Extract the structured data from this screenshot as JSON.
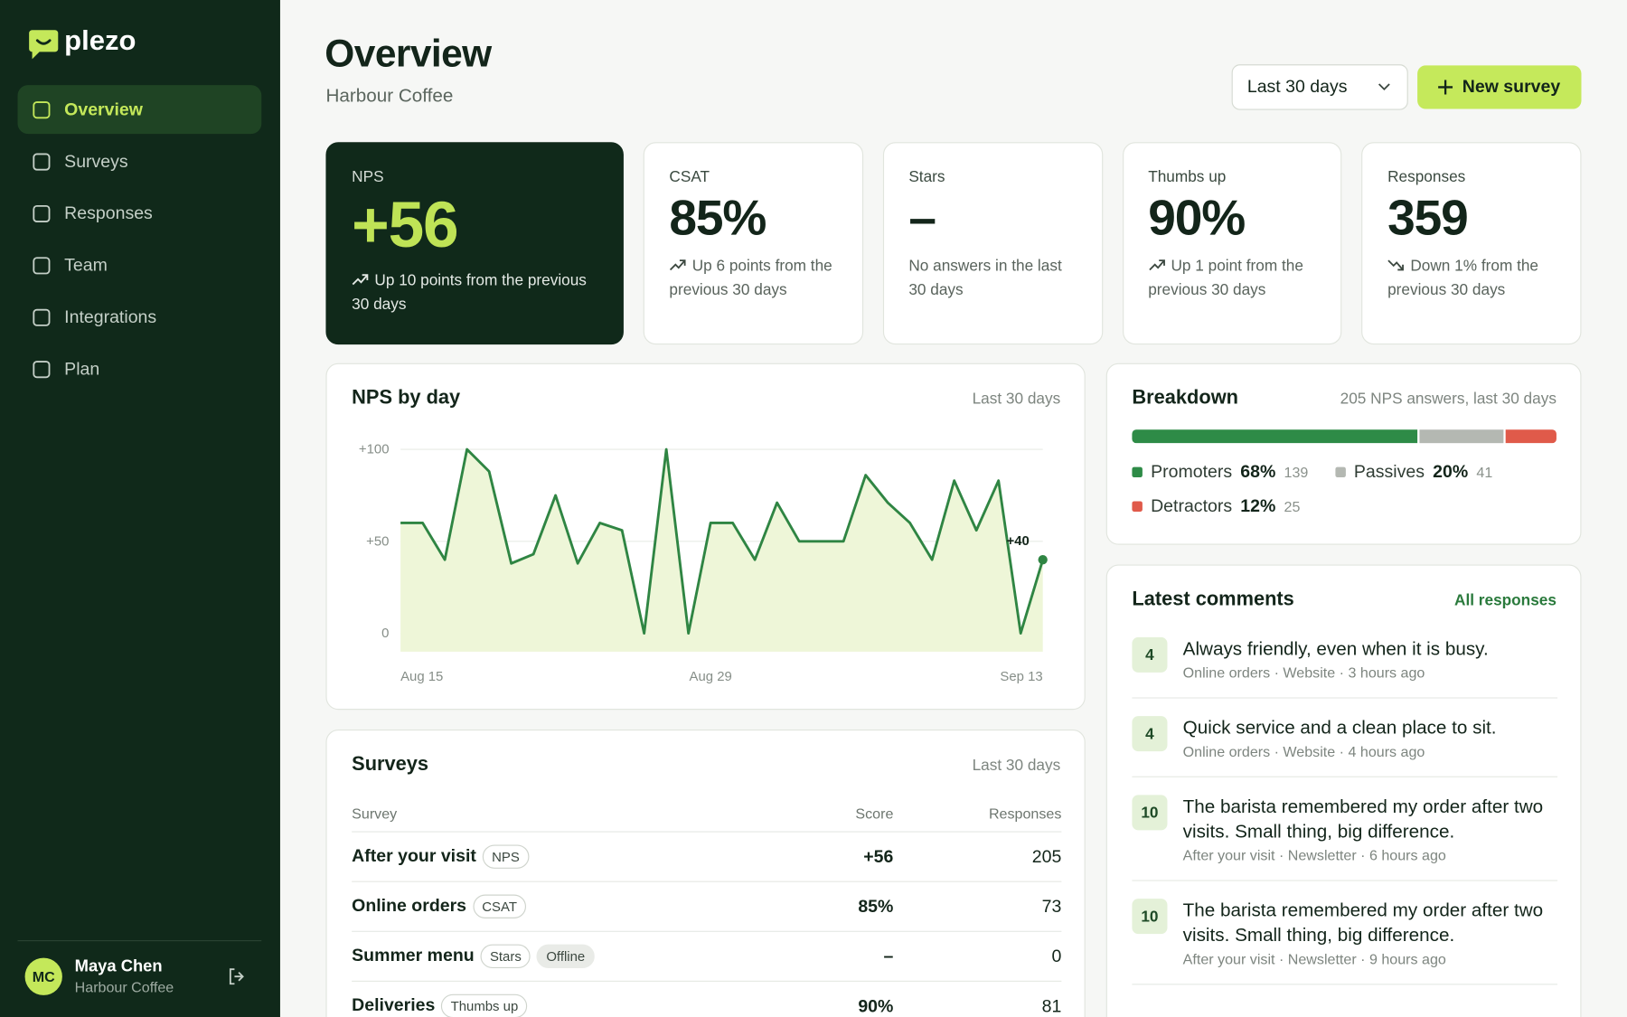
{
  "sidebar": {
    "brand": "plezo",
    "nav": [
      {
        "label": "Overview",
        "active": true
      },
      {
        "label": "Surveys"
      },
      {
        "label": "Responses"
      },
      {
        "label": "Team"
      },
      {
        "label": "Integrations"
      },
      {
        "label": "Plan"
      }
    ],
    "user": {
      "initials": "MC",
      "name": "Maya Chen",
      "org": "Harbour Coffee"
    }
  },
  "header": {
    "title": "Overview",
    "subtitle": "Harbour Coffee",
    "range": "Last 30 days",
    "action": "New survey"
  },
  "kpis": [
    {
      "label": "NPS",
      "value": "+56",
      "delta": "Up 10 points from the previous 30 days",
      "trend": "up",
      "highlight": true
    },
    {
      "label": "CSAT",
      "value": "85%",
      "delta": "Up 6 points from the previous 30 days",
      "trend": "up"
    },
    {
      "label": "Stars",
      "value": "–",
      "delta": "No answers in the last 30 days"
    },
    {
      "label": "Thumbs up",
      "value": "90%",
      "delta": "Up 1 point from the previous 30 days",
      "trend": "up"
    },
    {
      "label": "Responses",
      "value": "359",
      "delta": "Down 1% from the previous 30 days",
      "trend": "down"
    }
  ],
  "chart_data": {
    "type": "line",
    "title": "NPS by day",
    "subtitle": "Last 30 days",
    "categories": [
      "Aug 15",
      null,
      null,
      null,
      null,
      null,
      null,
      null,
      null,
      null,
      null,
      null,
      null,
      null,
      "Aug 29",
      null,
      null,
      null,
      null,
      null,
      null,
      null,
      null,
      null,
      null,
      null,
      null,
      null,
      null,
      "Sep 13"
    ],
    "values": [
      60,
      60,
      40,
      100,
      88,
      38,
      43,
      75,
      38,
      60,
      56,
      0,
      100,
      0,
      60,
      60,
      40,
      71,
      50,
      50,
      50,
      86,
      71,
      60,
      40,
      83,
      56,
      83,
      0,
      40
    ],
    "value_labels": [
      null,
      null,
      null,
      null,
      null,
      null,
      null,
      null,
      null,
      null,
      null,
      null,
      null,
      null,
      null,
      null,
      null,
      null,
      null,
      null,
      null,
      null,
      null,
      null,
      null,
      null,
      null,
      null,
      null,
      "+40"
    ],
    "color": "#2f8543",
    "fill": "#eef6d8",
    "ylim": [
      -10,
      100
    ],
    "yticks": [
      0,
      {
        "value": 50,
        "label": "+50"
      },
      {
        "value": 100,
        "label": "+100"
      }
    ],
    "grid": true
  },
  "breakdown": {
    "title": "Breakdown",
    "subtitle": "205 NPS answers, last 30 days",
    "segments": [
      {
        "name": "Promoters",
        "percent": {
          "value": 68,
          "label": "68%"
        },
        "count": 139,
        "color": "#2e8b47"
      },
      {
        "name": "Passives",
        "percent": {
          "value": 20,
          "label": "20%"
        },
        "count": 41,
        "color": "#b4b8b2"
      },
      {
        "name": "Detractors",
        "percent": {
          "value": 12,
          "label": "12%"
        },
        "count": 25,
        "color": "#e05a4a"
      }
    ]
  },
  "surveys": {
    "title": "Surveys",
    "subtitle": "Last 30 days",
    "columns": [
      "Survey",
      "Score",
      "Responses"
    ],
    "rows": [
      {
        "name": "After your visit",
        "tag": "NPS",
        "score": "+56",
        "responses": 205
      },
      {
        "name": "Online orders",
        "tag": "CSAT",
        "score": "85%",
        "responses": 73
      },
      {
        "name": "Summer menu",
        "tag": "Stars",
        "status": "Offline",
        "score": "–",
        "responses": 0
      },
      {
        "name": "Deliveries",
        "tag": "Thumbs up",
        "score": "90%",
        "responses": 81
      }
    ]
  },
  "comments": {
    "title": "Latest comments",
    "link": "All responses",
    "items": [
      {
        "score": 4,
        "text": "Always friendly, even when it is busy.",
        "meta": "Online orders · Website · 3 hours ago"
      },
      {
        "score": 4,
        "text": "Quick service and a clean place to sit.",
        "meta": "Online orders · Website · 4 hours ago"
      },
      {
        "score": 10,
        "text": "The barista remembered my order after two visits. Small thing, big difference.",
        "meta": "After your visit · Newsletter · 6 hours ago"
      },
      {
        "score": 10,
        "text": "The barista remembered my order after two visits. Small thing, big difference.",
        "meta": "After your visit · Newsletter · 9 hours ago"
      }
    ]
  }
}
